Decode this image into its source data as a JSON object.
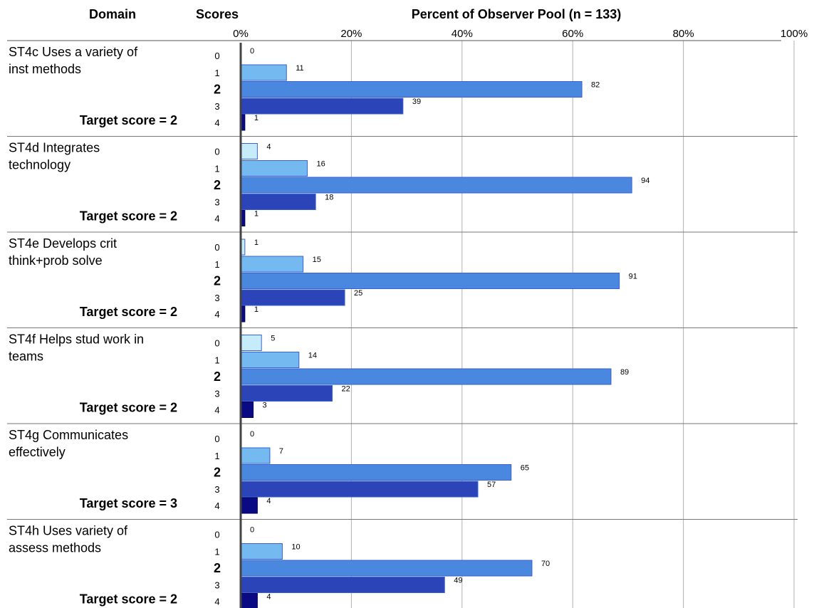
{
  "headers": {
    "domain": "Domain",
    "scores": "Scores",
    "percent": "Percent of Observer Pool (n = 133)"
  },
  "chart_data": {
    "type": "bar",
    "orientation": "horizontal",
    "n": 133,
    "xlim": [
      0,
      100
    ],
    "x_ticks": [
      "0%",
      "20%",
      "40%",
      "60%",
      "80%",
      "100%"
    ],
    "grid": true,
    "score_labels": [
      "0",
      "1",
      "2",
      "3",
      "4"
    ],
    "highlight_score": "2",
    "colors": [
      "#c6ecfc",
      "#74b9f0",
      "#4a87df",
      "#2b44b8",
      "#0a0a82"
    ],
    "groups": [
      {
        "domain": "ST4c Uses a variety of inst methods",
        "domain_lines": [
          "ST4c Uses a variety of",
          "inst methods"
        ],
        "target": "Target score = 2",
        "counts": [
          0,
          11,
          82,
          39,
          1
        ]
      },
      {
        "domain": "ST4d Integrates technology",
        "domain_lines": [
          "ST4d Integrates",
          "technology"
        ],
        "target": "Target score = 2",
        "counts": [
          4,
          16,
          94,
          18,
          1
        ]
      },
      {
        "domain": "ST4e Develops crit think+prob solve",
        "domain_lines": [
          "ST4e Develops crit",
          "think+prob solve"
        ],
        "target": "Target score = 2",
        "counts": [
          1,
          15,
          91,
          25,
          1
        ]
      },
      {
        "domain": "ST4f Helps stud work in teams",
        "domain_lines": [
          "ST4f Helps stud work in",
          "teams"
        ],
        "target": "Target score = 2",
        "counts": [
          5,
          14,
          89,
          22,
          3
        ]
      },
      {
        "domain": "ST4g Communicates effectively",
        "domain_lines": [
          "ST4g Communicates",
          "effectively"
        ],
        "target": "Target score = 3",
        "counts": [
          0,
          7,
          65,
          57,
          4
        ]
      },
      {
        "domain": "ST4h Uses variety of assess methods",
        "domain_lines": [
          "ST4h Uses variety of",
          "assess methods"
        ],
        "target": "Target score = 2",
        "counts": [
          0,
          10,
          70,
          49,
          4
        ]
      }
    ]
  }
}
